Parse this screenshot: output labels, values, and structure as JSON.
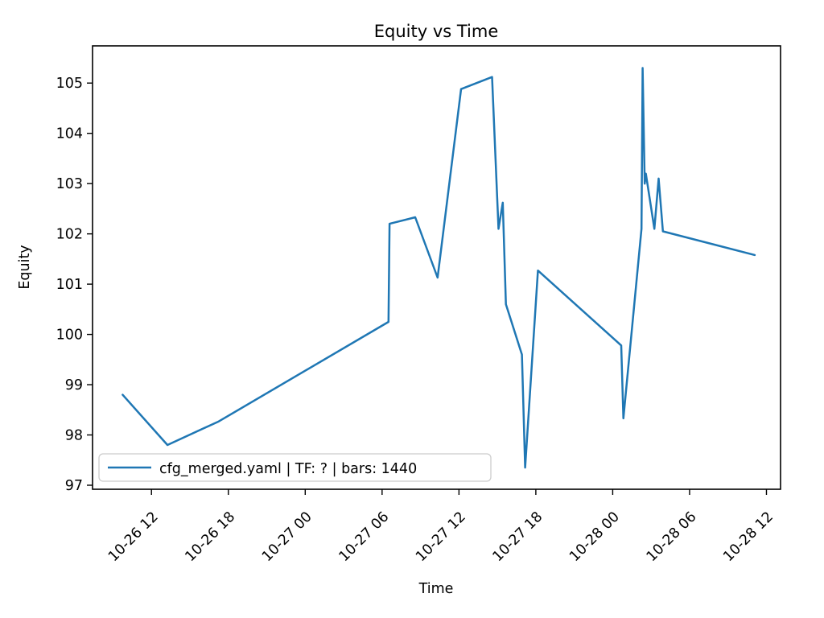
{
  "figure": {
    "title": "Equity vs Time",
    "xlabel": "Time",
    "ylabel": "Equity"
  },
  "legend": {
    "label": "cfg_merged.yaml | TF: ? | bars: 1440",
    "position": "lower left"
  },
  "colors": {
    "series_line": "#1f77b4",
    "axes_spine": "#000000",
    "legend_border": "#cccccc",
    "background": "#ffffff"
  },
  "chart_data": {
    "type": "line",
    "title": "Equity vs Time",
    "xlabel": "Time",
    "ylabel": "Equity",
    "grid": false,
    "legend_label": "cfg_merged.yaml | TF: ? | bars: 1440",
    "legend_position": "lower left",
    "line_color": "#1f77b4",
    "x_tick_labels": [
      "10-26 12",
      "10-26 18",
      "10-27 00",
      "10-27 06",
      "10-27 12",
      "10-27 18",
      "10-28 00",
      "10-28 06",
      "10-28 12"
    ],
    "y_ticks": [
      97,
      98,
      99,
      100,
      101,
      102,
      103,
      104,
      105
    ],
    "xlim_hours_from_10-26_00": [
      7.4,
      61.1
    ],
    "ylim": [
      96.92,
      105.74
    ],
    "x_tick_rotation_deg": 45,
    "series": [
      {
        "name": "cfg_merged.yaml | TF: ? | bars: 1440",
        "points": [
          {
            "time": "10-26 09:45",
            "equity": 98.8
          },
          {
            "time": "10-26 13:15",
            "equity": 97.8
          },
          {
            "time": "10-26 17:15",
            "equity": 98.27
          },
          {
            "time": "10-27 06:30",
            "equity": 100.25
          },
          {
            "time": "10-27 06:35",
            "equity": 102.2
          },
          {
            "time": "10-27 08:35",
            "equity": 102.33
          },
          {
            "time": "10-27 10:20",
            "equity": 101.13
          },
          {
            "time": "10-27 12:10",
            "equity": 104.88
          },
          {
            "time": "10-27 14:35",
            "equity": 105.12
          },
          {
            "time": "10-27 15:05",
            "equity": 102.1
          },
          {
            "time": "10-27 15:25",
            "equity": 102.62
          },
          {
            "time": "10-27 15:40",
            "equity": 100.6
          },
          {
            "time": "10-27 16:55",
            "equity": 99.6
          },
          {
            "time": "10-27 17:10",
            "equity": 97.35
          },
          {
            "time": "10-27 18:10",
            "equity": 101.27
          },
          {
            "time": "10-28 00:40",
            "equity": 99.78
          },
          {
            "time": "10-28 00:50",
            "equity": 98.33
          },
          {
            "time": "10-28 02:15",
            "equity": 102.1
          },
          {
            "time": "10-28 02:20",
            "equity": 105.3
          },
          {
            "time": "10-28 02:30",
            "equity": 103.0
          },
          {
            "time": "10-28 02:35",
            "equity": 103.2
          },
          {
            "time": "10-28 03:15",
            "equity": 102.1
          },
          {
            "time": "10-28 03:35",
            "equity": 103.1
          },
          {
            "time": "10-28 03:55",
            "equity": 102.05
          },
          {
            "time": "10-28 11:05",
            "equity": 101.58
          }
        ]
      }
    ]
  }
}
